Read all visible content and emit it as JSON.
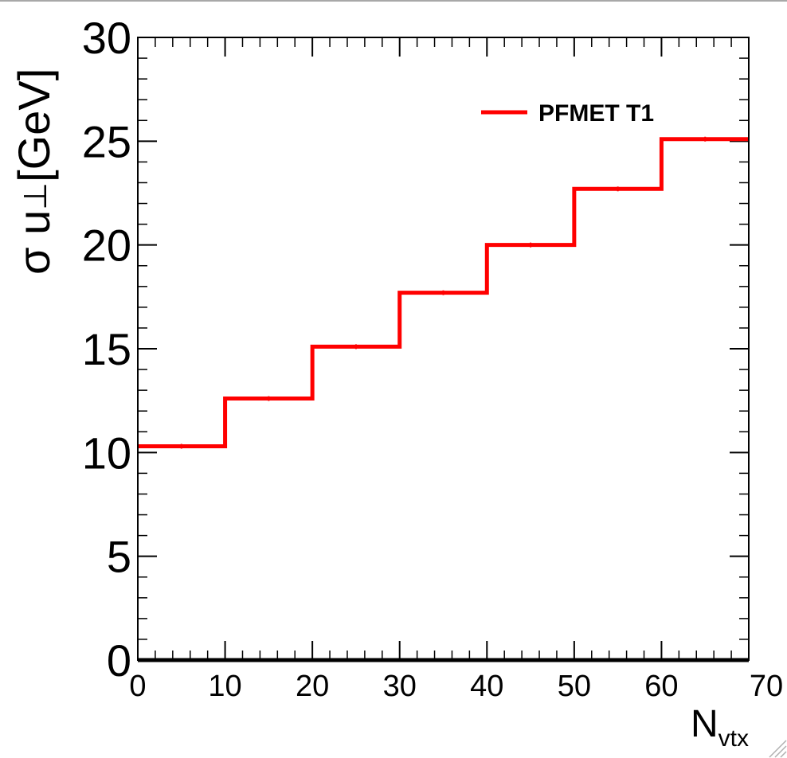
{
  "chart_data": {
    "type": "line",
    "step": true,
    "title": "",
    "xlabel": "N",
    "xlabel_sub": "vtx",
    "ylabel": "σ u",
    "ylabel_sub": "⊥",
    "ylabel_unit": "[GeV]",
    "xlim": [
      0,
      70
    ],
    "ylim": [
      0,
      30
    ],
    "x_ticks": [
      0,
      10,
      20,
      30,
      40,
      50,
      60,
      70
    ],
    "y_ticks": [
      0,
      5,
      10,
      15,
      20,
      25,
      30
    ],
    "grid": false,
    "legend_position": "top-right",
    "bin_edges": [
      0,
      10,
      20,
      30,
      40,
      50,
      60,
      70
    ],
    "series": [
      {
        "name": "PFMET T1",
        "color": "#ff0000",
        "values": [
          10.3,
          12.6,
          15.1,
          17.7,
          20.0,
          22.7,
          25.1
        ]
      }
    ]
  }
}
